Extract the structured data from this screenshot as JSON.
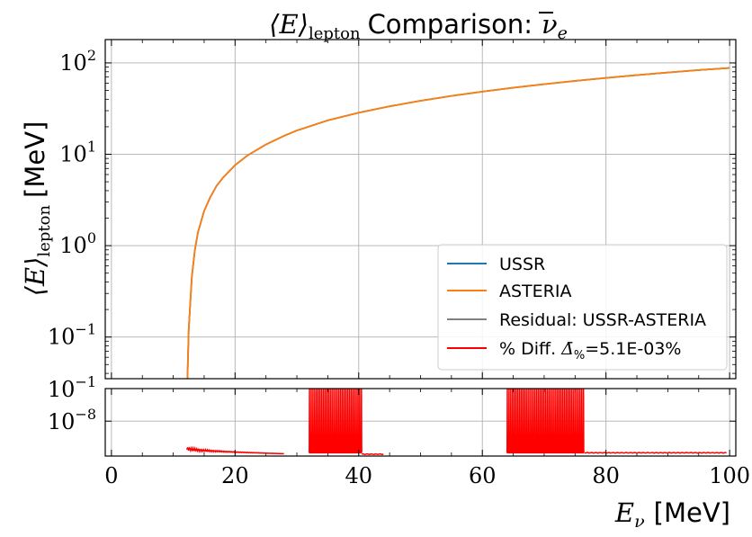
{
  "chart_data": [
    {
      "panel": "main",
      "type": "line",
      "title_math": "⟨E⟩",
      "title_sub": "lepton",
      "title_text": "Comparison:",
      "title_nu": "ν",
      "title_nu_sub": "e",
      "ylabel_math": "⟨E⟩",
      "ylabel_sub": "lepton",
      "ylabel_unit": "[MeV]",
      "yscale": "log",
      "ylim": [
        0.035,
        180
      ],
      "xlim": [
        -1,
        101
      ],
      "grid": true,
      "yticks": [
        {
          "value": 0.1,
          "base": "10",
          "exp": "−1"
        },
        {
          "value": 1,
          "base": "10",
          "exp": "0"
        },
        {
          "value": 10,
          "base": "10",
          "exp": "1"
        },
        {
          "value": 100,
          "base": "10",
          "exp": "2"
        }
      ],
      "legend_position": "lower-right",
      "legend": [
        {
          "label": "USSR",
          "color": "#1f77b4"
        },
        {
          "label": "ASTERIA",
          "color": "#ff7f0e"
        },
        {
          "label": "Residual:  USSR-ASTERIA",
          "color": "#808080"
        },
        {
          "label_prefix": "% Diff.",
          "label_math": "Δ̄",
          "label_sub": "%",
          "label_suffix": "=5.1E-03%",
          "color": "#ff0000"
        }
      ],
      "series": [
        {
          "name": "USSR",
          "color": "#1f77b4",
          "x": [
            12.3,
            12.5,
            13,
            13.5,
            14,
            15,
            16,
            17,
            18,
            20,
            22,
            25,
            28,
            30,
            35,
            40,
            45,
            50,
            55,
            60,
            65,
            70,
            75,
            80,
            85,
            90,
            95,
            100
          ],
          "y": [
            0.035,
            0.12,
            0.45,
            0.9,
            1.4,
            2.4,
            3.4,
            4.5,
            5.5,
            7.6,
            9.7,
            12.8,
            16,
            18.2,
            23.5,
            28.5,
            33.5,
            38.5,
            43.5,
            48.5,
            53.5,
            58.5,
            63.5,
            68.5,
            73.5,
            78.5,
            83.5,
            88
          ]
        },
        {
          "name": "ASTERIA",
          "color": "#ff7f0e",
          "x": [
            12.3,
            12.5,
            13,
            13.5,
            14,
            15,
            16,
            17,
            18,
            20,
            22,
            25,
            28,
            30,
            35,
            40,
            45,
            50,
            55,
            60,
            65,
            70,
            75,
            80,
            85,
            90,
            95,
            100
          ],
          "y": [
            0.035,
            0.12,
            0.45,
            0.9,
            1.4,
            2.4,
            3.4,
            4.5,
            5.5,
            7.6,
            9.7,
            12.8,
            16,
            18.2,
            23.5,
            28.5,
            33.5,
            38.5,
            43.5,
            48.5,
            53.5,
            58.5,
            63.5,
            68.5,
            73.5,
            78.5,
            83.5,
            88
          ]
        }
      ]
    },
    {
      "panel": "residual",
      "type": "line",
      "yscale": "log",
      "ylim_exp": [
        -15.5,
        -1
      ],
      "xlim": [
        -1,
        101
      ],
      "grid": true,
      "yticks": [
        {
          "value_exp": -1,
          "base": "10",
          "exp": "−1"
        },
        {
          "value_exp": -8,
          "base": "10",
          "exp": "−8"
        }
      ],
      "xticks": [
        0,
        20,
        40,
        60,
        80,
        100
      ],
      "xlabel_math": "E",
      "xlabel_sub": "ν",
      "xlabel_unit": "[MeV]",
      "series": [
        {
          "name": "% Diff.",
          "color": "#ff0000",
          "segments": [
            {
              "x_start": 12.2,
              "x_end": 28,
              "kind": "decay",
              "y_exp_start": -13.8,
              "y_exp_end": -15.0
            },
            {
              "x_start": 32,
              "x_end": 40.5,
              "kind": "spikes",
              "y_exp_top": -1,
              "y_exp_base": -14.8,
              "period": 0.28
            },
            {
              "x_start": 40.5,
              "x_end": 44,
              "kind": "flat",
              "y_exp_start": -15.1,
              "y_exp_end": -15.1
            },
            {
              "x_start": 64,
              "x_end": 76.5,
              "kind": "spikes",
              "y_exp_top": -1,
              "y_exp_base": -14.8,
              "period": 0.28
            },
            {
              "x_start": 76.5,
              "x_end": 99.5,
              "kind": "flat",
              "y_exp_start": -14.8,
              "y_exp_end": -14.8
            }
          ]
        }
      ]
    }
  ]
}
